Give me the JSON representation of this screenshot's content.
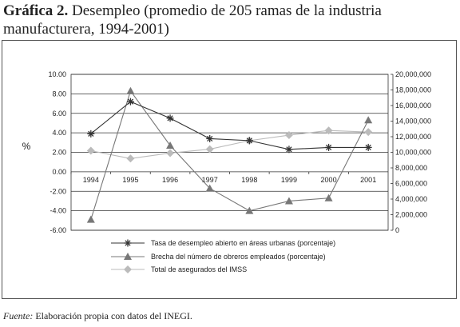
{
  "figure": {
    "title_prefix": "Gráfica 2.",
    "title": "Desempleo (promedio de 205 ramas de la industria manufacturera, 1994-2001)",
    "source_label": "Fuente:",
    "source_text": "Elaboración propia con datos del INEGI."
  },
  "chart_data": {
    "type": "line",
    "title": "Desempleo (promedio de 205 ramas de la industria manufacturera, 1994-2001)",
    "categories": [
      "1994",
      "1995",
      "1996",
      "1997",
      "1998",
      "1999",
      "2000",
      "2001"
    ],
    "ylabel": "%",
    "ylim": [
      -6,
      10
    ],
    "yticks": [
      "10.00",
      "8.00",
      "6.00",
      "4.00",
      "2.00",
      "0.00",
      "-2.00",
      "-4.00",
      "-6.00"
    ],
    "y2lim": [
      0,
      20000000
    ],
    "y2ticks": [
      "20,000,000",
      "18,000,000",
      "16,000,000",
      "14,000,000",
      "12,000,000",
      "10,000,000",
      "8,000,000",
      "6,000,000",
      "4,000,000",
      "2,000,000",
      "0"
    ],
    "grid": "horizontal",
    "legend_position": "bottom",
    "series": [
      {
        "name": "Tasa de desempleo abierto en áreas urbanas (porcentaje)",
        "axis": "left",
        "marker": "asterisk",
        "color": "#333333",
        "values": [
          3.9,
          7.2,
          5.5,
          3.4,
          3.2,
          2.3,
          2.5,
          2.5
        ]
      },
      {
        "name": "Brecha del número de obreros empleados (porcentaje)",
        "axis": "left",
        "marker": "triangle",
        "color": "#777777",
        "values": [
          -4.9,
          8.3,
          2.7,
          -1.7,
          -4.0,
          -3.0,
          -2.7,
          5.3
        ]
      },
      {
        "name": "Total de asegurados del IMSS",
        "axis": "right",
        "marker": "diamond",
        "color": "#bbbbbb",
        "values": [
          10200000,
          9200000,
          9900000,
          10400000,
          11500000,
          12200000,
          12800000,
          12600000
        ]
      }
    ]
  }
}
